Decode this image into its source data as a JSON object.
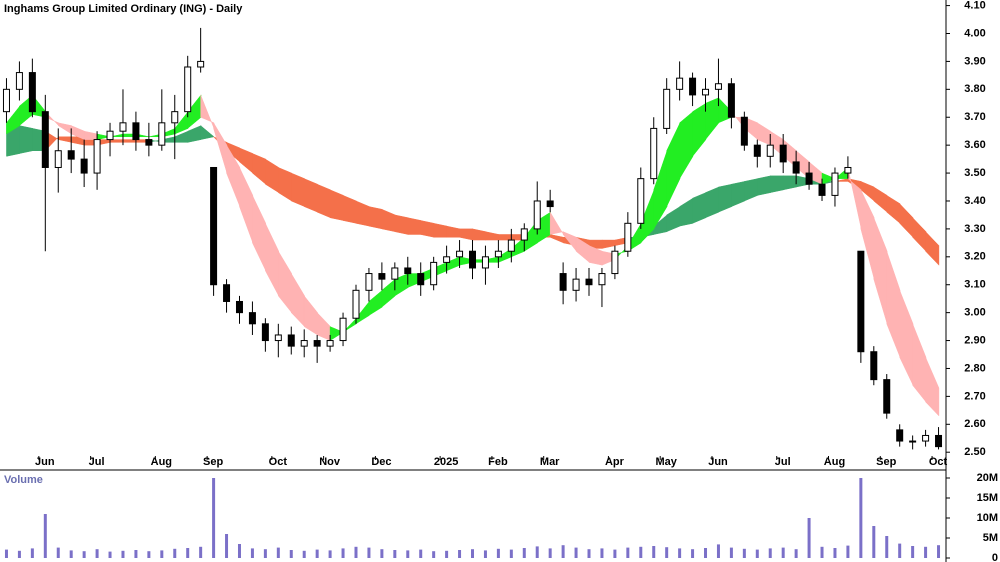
{
  "chart_data": {
    "type": "candlestick",
    "title": "Inghams Group Limited Ordinary (ING) - Daily",
    "categories": [
      null,
      null,
      null,
      "Jun",
      null,
      null,
      null,
      "Jul",
      null,
      null,
      null,
      null,
      "Aug",
      null,
      null,
      null,
      "Sep",
      null,
      null,
      null,
      null,
      "Oct",
      null,
      null,
      null,
      "Nov",
      null,
      null,
      null,
      "Dec",
      null,
      null,
      null,
      null,
      "2025",
      null,
      null,
      null,
      "Feb",
      null,
      null,
      null,
      "Mar",
      null,
      null,
      null,
      null,
      "Apr",
      null,
      null,
      null,
      "May",
      null,
      null,
      null,
      "Jun",
      null,
      null,
      null,
      null,
      "Jul",
      null,
      null,
      null,
      "Aug",
      null,
      null,
      null,
      "Sep",
      null,
      null,
      null,
      "Oct"
    ],
    "open": [
      3.72,
      3.8,
      3.86,
      3.72,
      3.52,
      3.58,
      3.55,
      3.5,
      3.62,
      3.65,
      3.68,
      3.62,
      3.6,
      3.68,
      3.72,
      3.88,
      3.52,
      3.1,
      3.04,
      3.0,
      2.96,
      2.9,
      2.92,
      2.88,
      2.9,
      2.88,
      2.9,
      2.98,
      3.08,
      3.14,
      3.12,
      3.16,
      3.14,
      3.1,
      3.18,
      3.2,
      3.22,
      3.16,
      3.2,
      3.22,
      3.26,
      3.3,
      3.4,
      3.14,
      3.08,
      3.12,
      3.1,
      3.14,
      3.22,
      3.32,
      3.48,
      3.66,
      3.8,
      3.84,
      3.78,
      3.8,
      3.82,
      3.7,
      3.6,
      3.56,
      3.6,
      3.54,
      3.5,
      3.46,
      3.42,
      3.5,
      3.22,
      2.86,
      2.76,
      2.58,
      2.54,
      2.54,
      2.56
    ],
    "high": [
      3.84,
      3.9,
      3.91,
      3.78,
      3.66,
      3.66,
      3.62,
      3.65,
      3.68,
      3.8,
      3.72,
      3.68,
      3.8,
      3.78,
      3.92,
      4.02,
      3.52,
      3.12,
      3.06,
      3.04,
      2.98,
      2.96,
      2.95,
      2.94,
      2.92,
      2.92,
      3.0,
      3.1,
      3.16,
      3.18,
      3.18,
      3.2,
      3.18,
      3.2,
      3.24,
      3.26,
      3.26,
      3.24,
      3.26,
      3.3,
      3.32,
      3.47,
      3.44,
      3.18,
      3.16,
      3.16,
      3.16,
      3.24,
      3.36,
      3.52,
      3.7,
      3.84,
      3.9,
      3.86,
      3.84,
      3.91,
      3.84,
      3.72,
      3.62,
      3.64,
      3.64,
      3.58,
      3.54,
      3.48,
      3.52,
      3.56,
      3.22,
      2.88,
      2.78,
      2.6,
      2.56,
      2.58,
      2.59
    ],
    "low": [
      3.68,
      3.76,
      3.7,
      3.22,
      3.43,
      3.5,
      3.45,
      3.44,
      3.56,
      3.6,
      3.58,
      3.56,
      3.58,
      3.55,
      3.7,
      3.86,
      3.06,
      3.0,
      2.96,
      2.92,
      2.86,
      2.84,
      2.85,
      2.84,
      2.82,
      2.86,
      2.88,
      2.96,
      3.04,
      3.08,
      3.08,
      3.1,
      3.06,
      3.08,
      3.14,
      3.16,
      3.12,
      3.1,
      3.16,
      3.18,
      3.22,
      3.28,
      3.36,
      3.03,
      3.04,
      3.06,
      3.02,
      3.12,
      3.2,
      3.3,
      3.46,
      3.64,
      3.76,
      3.74,
      3.72,
      3.74,
      3.66,
      3.58,
      3.52,
      3.52,
      3.5,
      3.46,
      3.44,
      3.4,
      3.38,
      3.48,
      2.82,
      2.74,
      2.62,
      2.52,
      2.51,
      2.52,
      2.51
    ],
    "close": [
      3.8,
      3.86,
      3.72,
      3.52,
      3.58,
      3.55,
      3.5,
      3.62,
      3.65,
      3.68,
      3.62,
      3.6,
      3.68,
      3.72,
      3.88,
      3.9,
      3.1,
      3.04,
      3.0,
      2.96,
      2.9,
      2.92,
      2.88,
      2.9,
      2.88,
      2.9,
      2.98,
      3.08,
      3.14,
      3.12,
      3.16,
      3.14,
      3.1,
      3.18,
      3.2,
      3.22,
      3.16,
      3.2,
      3.22,
      3.26,
      3.3,
      3.4,
      3.38,
      3.08,
      3.12,
      3.1,
      3.14,
      3.22,
      3.32,
      3.48,
      3.66,
      3.8,
      3.84,
      3.78,
      3.8,
      3.82,
      3.7,
      3.6,
      3.56,
      3.6,
      3.54,
      3.5,
      3.46,
      3.42,
      3.5,
      3.52,
      2.86,
      2.76,
      2.64,
      2.54,
      2.54,
      2.56,
      2.52
    ],
    "candle_up_color": "#ffffff",
    "candle_down_color": "#000000",
    "ribbons": [
      {
        "up_color": "#3aa66a",
        "down_color": "#f4704a",
        "fast": [
          3.68,
          3.67,
          3.66,
          3.65,
          3.62,
          3.61,
          3.6,
          3.6,
          3.61,
          3.61,
          3.61,
          3.61,
          3.62,
          3.63,
          3.65,
          3.67,
          3.63,
          3.58,
          3.54,
          3.5,
          3.46,
          3.43,
          3.4,
          3.38,
          3.36,
          3.34,
          3.33,
          3.32,
          3.31,
          3.3,
          3.29,
          3.28,
          3.28,
          3.27,
          3.27,
          3.27,
          3.26,
          3.26,
          3.26,
          3.26,
          3.26,
          3.27,
          3.27,
          3.25,
          3.24,
          3.23,
          3.23,
          3.24,
          3.25,
          3.28,
          3.31,
          3.35,
          3.38,
          3.41,
          3.43,
          3.45,
          3.46,
          3.47,
          3.48,
          3.49,
          3.49,
          3.49,
          3.48,
          3.47,
          3.47,
          3.47,
          3.44,
          3.4,
          3.36,
          3.32,
          3.27,
          3.22,
          3.17
        ],
        "slow": [
          3.56,
          3.57,
          3.58,
          3.58,
          3.63,
          3.63,
          3.63,
          3.62,
          3.62,
          3.62,
          3.62,
          3.62,
          3.61,
          3.61,
          3.61,
          3.62,
          3.63,
          3.61,
          3.59,
          3.57,
          3.55,
          3.52,
          3.5,
          3.48,
          3.46,
          3.44,
          3.42,
          3.4,
          3.38,
          3.37,
          3.35,
          3.34,
          3.33,
          3.32,
          3.31,
          3.3,
          3.3,
          3.29,
          3.28,
          3.28,
          3.28,
          3.28,
          3.28,
          3.27,
          3.27,
          3.26,
          3.26,
          3.26,
          3.27,
          3.27,
          3.28,
          3.29,
          3.31,
          3.32,
          3.34,
          3.36,
          3.38,
          3.4,
          3.42,
          3.43,
          3.44,
          3.45,
          3.46,
          3.46,
          3.47,
          3.48,
          3.47,
          3.45,
          3.42,
          3.39,
          3.34,
          3.29,
          3.24
        ]
      },
      {
        "up_color": "#22ee22",
        "down_color": "#ffb3b3",
        "fast": [
          3.68,
          3.74,
          3.78,
          3.72,
          3.67,
          3.64,
          3.62,
          3.62,
          3.63,
          3.64,
          3.64,
          3.63,
          3.64,
          3.66,
          3.72,
          3.78,
          3.66,
          3.5,
          3.38,
          3.25,
          3.15,
          3.06,
          3.0,
          2.95,
          2.92,
          2.9,
          2.93,
          2.98,
          3.04,
          3.08,
          3.12,
          3.14,
          3.14,
          3.16,
          3.18,
          3.2,
          3.19,
          3.19,
          3.2,
          3.23,
          3.27,
          3.33,
          3.36,
          3.28,
          3.22,
          3.18,
          3.17,
          3.19,
          3.24,
          3.32,
          3.44,
          3.58,
          3.68,
          3.72,
          3.75,
          3.77,
          3.72,
          3.66,
          3.62,
          3.6,
          3.56,
          3.52,
          3.48,
          3.46,
          3.48,
          3.52,
          3.3,
          3.12,
          2.96,
          2.84,
          2.74,
          2.68,
          2.63
        ],
        "slow": [
          3.64,
          3.67,
          3.71,
          3.7,
          3.68,
          3.67,
          3.65,
          3.64,
          3.63,
          3.63,
          3.63,
          3.63,
          3.63,
          3.64,
          3.66,
          3.7,
          3.68,
          3.6,
          3.52,
          3.42,
          3.32,
          3.22,
          3.14,
          3.06,
          3.0,
          2.95,
          2.93,
          2.96,
          2.99,
          3.02,
          3.06,
          3.09,
          3.11,
          3.13,
          3.15,
          3.17,
          3.18,
          3.18,
          3.18,
          3.2,
          3.22,
          3.25,
          3.28,
          3.29,
          3.27,
          3.24,
          3.22,
          3.21,
          3.22,
          3.25,
          3.3,
          3.38,
          3.48,
          3.56,
          3.62,
          3.68,
          3.7,
          3.7,
          3.68,
          3.65,
          3.62,
          3.58,
          3.54,
          3.5,
          3.48,
          3.48,
          3.44,
          3.34,
          3.22,
          3.08,
          2.96,
          2.84,
          2.73
        ]
      }
    ],
    "volume": {
      "title": "Volume",
      "color": "#7b70c8",
      "axis": "y2",
      "values": [
        2100000,
        1800000,
        2400000,
        11000000,
        2600000,
        1900000,
        1700000,
        2200000,
        1600000,
        1800000,
        2000000,
        1700000,
        1900000,
        2300000,
        2500000,
        2800000,
        20000000,
        6000000,
        3500000,
        2400000,
        2200000,
        2600000,
        2000000,
        1800000,
        2100000,
        1900000,
        2400000,
        2800000,
        2600000,
        2200000,
        2000000,
        1900000,
        2100000,
        1700000,
        1800000,
        2000000,
        2200000,
        1900000,
        2300000,
        2100000,
        2500000,
        2900000,
        2400000,
        3200000,
        2600000,
        2200000,
        2400000,
        2100000,
        2600000,
        2800000,
        3000000,
        2700000,
        2400000,
        2200000,
        2500000,
        3400000,
        2600000,
        2300000,
        2100000,
        2400000,
        2600000,
        2200000,
        10000000,
        2800000,
        2500000,
        3100000,
        20000000,
        8000000,
        5500000,
        3600000,
        3000000,
        2800000,
        3200000
      ]
    },
    "ylim": [
      2.49,
      4.12
    ],
    "yticks": [
      {
        "value": 2.5,
        "label": "2.50"
      },
      {
        "value": 2.6,
        "label": "2.60"
      },
      {
        "value": 2.7,
        "label": "2.70"
      },
      {
        "value": 2.8,
        "label": "2.80"
      },
      {
        "value": 2.9,
        "label": "2.90"
      },
      {
        "value": 3.0,
        "label": "3.00"
      },
      {
        "value": 3.1,
        "label": "3.10"
      },
      {
        "value": 3.2,
        "label": "3.20"
      },
      {
        "value": 3.3,
        "label": "3.30"
      },
      {
        "value": 3.4,
        "label": "3.40"
      },
      {
        "value": 3.5,
        "label": "3.50"
      },
      {
        "value": 3.6,
        "label": "3.60"
      },
      {
        "value": 3.7,
        "label": "3.70"
      },
      {
        "value": 3.8,
        "label": "3.80"
      },
      {
        "value": 3.9,
        "label": "3.90"
      },
      {
        "value": 4.0,
        "label": "4.00"
      },
      {
        "value": 4.1,
        "label": "4.10"
      }
    ],
    "y2lim": [
      0,
      22000000
    ],
    "y2ticks": [
      0,
      {
        "value": 5000000,
        "label": "5M"
      },
      {
        "value": 10000000,
        "label": "10M"
      },
      {
        "value": 15000000,
        "label": "15M"
      },
      {
        "value": 20000000,
        "label": "20M"
      }
    ]
  }
}
